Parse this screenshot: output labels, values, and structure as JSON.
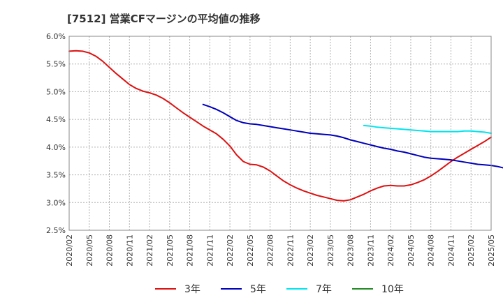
{
  "chart_data": {
    "type": "line",
    "title": "[7512]  営業CFマージンの平均値の推移",
    "xlabel": "",
    "ylabel": "",
    "ylim": [
      2.5,
      6.0
    ],
    "y_ticks": [
      "2.5%",
      "3.0%",
      "3.5%",
      "4.0%",
      "4.5%",
      "5.0%",
      "5.5%",
      "6.0%"
    ],
    "x_ticks": [
      "2020/02",
      "2020/05",
      "2020/08",
      "2020/11",
      "2021/02",
      "2021/05",
      "2021/08",
      "2021/11",
      "2022/02",
      "2022/05",
      "2022/08",
      "2022/11",
      "2023/02",
      "2023/05",
      "2023/08",
      "2023/11",
      "2024/02",
      "2024/05",
      "2024/08",
      "2024/11",
      "2025/02",
      "2025/05"
    ],
    "grid": true,
    "legend_position": "bottom",
    "series": [
      {
        "name": "3年",
        "color": "#dd1111",
        "start": "2020/02",
        "values": [
          5.73,
          5.74,
          5.73,
          5.7,
          5.64,
          5.55,
          5.44,
          5.33,
          5.23,
          5.13,
          5.06,
          5.01,
          4.98,
          4.94,
          4.88,
          4.8,
          4.71,
          4.62,
          4.54,
          4.46,
          4.38,
          4.31,
          4.24,
          4.14,
          4.02,
          3.86,
          3.74,
          3.69,
          3.68,
          3.64,
          3.57,
          3.48,
          3.39,
          3.32,
          3.26,
          3.21,
          3.17,
          3.13,
          3.1,
          3.07,
          3.04,
          3.03,
          3.05,
          3.1,
          3.15,
          3.21,
          3.26,
          3.3,
          3.31,
          3.3,
          3.3,
          3.32,
          3.36,
          3.41,
          3.48,
          3.56,
          3.65,
          3.74,
          3.82,
          3.89,
          3.96,
          4.03,
          4.1,
          4.18
        ]
      },
      {
        "name": "5年",
        "color": "#0000bb",
        "start": "2021/10",
        "values": [
          4.77,
          4.73,
          4.68,
          4.62,
          4.55,
          4.48,
          4.44,
          4.42,
          4.41,
          4.39,
          4.37,
          4.35,
          4.33,
          4.31,
          4.29,
          4.27,
          4.25,
          4.24,
          4.23,
          4.22,
          4.2,
          4.17,
          4.13,
          4.1,
          4.07,
          4.04,
          4.01,
          3.98,
          3.96,
          3.93,
          3.91,
          3.88,
          3.85,
          3.82,
          3.8,
          3.79,
          3.78,
          3.77,
          3.75,
          3.73,
          3.71,
          3.69,
          3.68,
          3.67,
          3.65,
          3.62,
          3.59
        ]
      },
      {
        "name": "7年",
        "color": "#00e5ee",
        "start": "2023/10",
        "values": [
          4.39,
          4.38,
          4.36,
          4.35,
          4.34,
          4.33,
          4.32,
          4.31,
          4.3,
          4.29,
          4.28,
          4.28,
          4.28,
          4.28,
          4.28,
          4.29,
          4.29,
          4.28,
          4.27,
          4.25
        ]
      },
      {
        "name": "10年",
        "color": "#228b22",
        "start": "2025/02",
        "values": []
      }
    ]
  }
}
